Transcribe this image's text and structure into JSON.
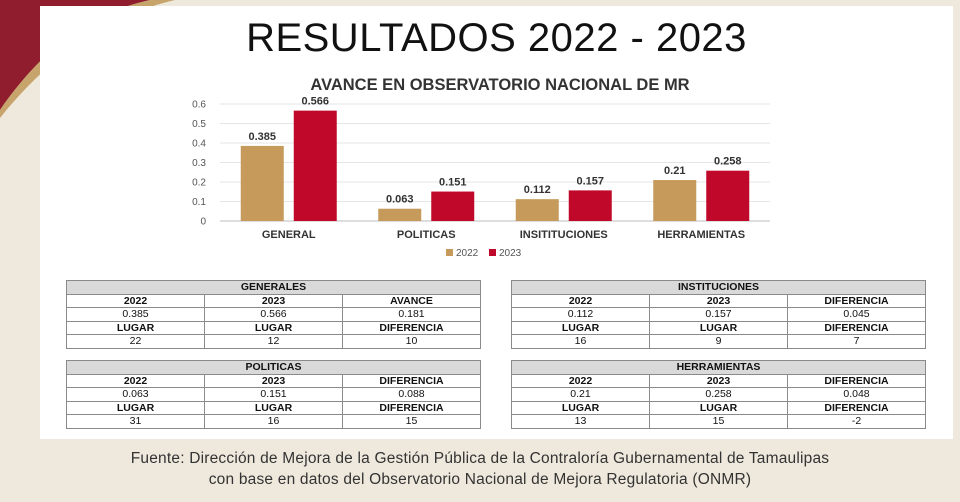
{
  "page": {
    "title": "RESULTADOS 2022 - 2023"
  },
  "chart_data": {
    "type": "bar",
    "title": "AVANCE EN OBSERVATORIO NACIONAL DE MR",
    "categories": [
      "GENERAL",
      "POLITICAS",
      "INSITITUCIONES",
      "HERRAMIENTAS"
    ],
    "series": [
      {
        "name": "2022",
        "values": [
          0.385,
          0.063,
          0.112,
          0.21
        ],
        "labels": [
          "0.385",
          "0.063",
          "0.112",
          "0.21"
        ],
        "color": "#c59a5a"
      },
      {
        "name": "2023",
        "values": [
          0.566,
          0.151,
          0.157,
          0.258
        ],
        "labels": [
          "0.566",
          "0.151",
          "0.157",
          "0.258"
        ],
        "color": "#c0082a"
      }
    ],
    "ylim": [
      0,
      0.6
    ],
    "yticks": [
      "0",
      "0.1",
      "0.2",
      "0.3",
      "0.4",
      "0.5",
      "0.6"
    ],
    "grid": true,
    "legend": "bottom"
  },
  "tables": {
    "generales": {
      "title": "GENERALES",
      "header": [
        "2022",
        "2023",
        "AVANCE"
      ],
      "values": [
        "0.385",
        "0.566",
        "0.181"
      ],
      "header2": [
        "LUGAR",
        "LUGAR",
        "DIFERENCIA"
      ],
      "values2": [
        "22",
        "12",
        "10"
      ]
    },
    "instituciones": {
      "title": "INSTITUCIONES",
      "header": [
        "2022",
        "2023",
        "DIFERENCIA"
      ],
      "values": [
        "0.112",
        "0.157",
        "0.045"
      ],
      "header2": [
        "LUGAR",
        "LUGAR",
        "DIFERENCIA"
      ],
      "values2": [
        "16",
        "9",
        "7"
      ]
    },
    "politicas": {
      "title": "POLITICAS",
      "header": [
        "2022",
        "2023",
        "DIFERENCIA"
      ],
      "values": [
        "0.063",
        "0.151",
        "0.088"
      ],
      "header2": [
        "LUGAR",
        "LUGAR",
        "DIFERENCIA"
      ],
      "values2": [
        "31",
        "16",
        "15"
      ]
    },
    "herramientas": {
      "title": "HERRAMIENTAS",
      "header": [
        "2022",
        "2023",
        "DIFERENCIA"
      ],
      "values": [
        "0.21",
        "0.258",
        "0.048"
      ],
      "header2": [
        "LUGAR",
        "LUGAR",
        "DIFERENCIA"
      ],
      "values2": [
        "13",
        "15",
        "-2"
      ]
    }
  },
  "footer": {
    "line1": "Fuente: Dirección de Mejora de la Gestión Pública de la Contraloría Gubernamental de Tamaulipas",
    "line2": "con base en datos del Observatorio Nacional de Mejora Regulatoria (ONMR)"
  }
}
